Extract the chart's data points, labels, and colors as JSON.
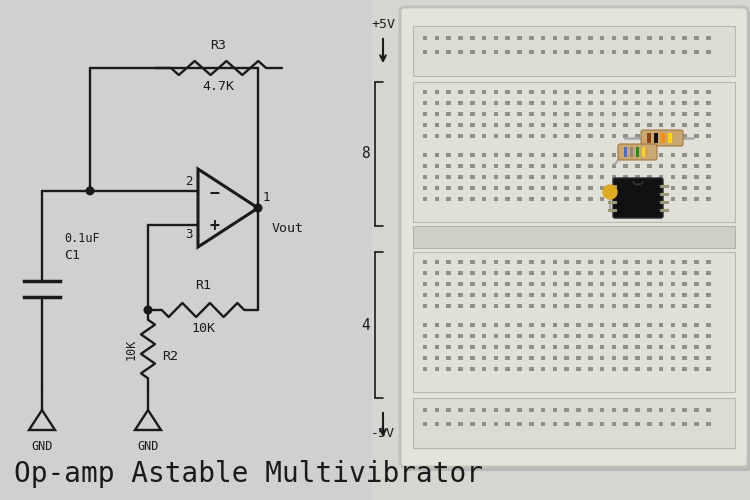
{
  "title": "Op-amp Astable Multivibrator",
  "bg_color": "#d0d0d0",
  "line_color": "#1a1a1a",
  "text_color": "#1a1a1a",
  "title_fontsize": 20,
  "bb_body_color": "#e8e8e2",
  "bb_rail_color": "#ddddd6",
  "bb_divider_color": "#c8c8c2",
  "bb_hole_color": "#aaaaaa",
  "bb_edge_color": "#b8b8b0",
  "right_bg": "#d8d8d5",
  "chip_color": "#111111",
  "components": {
    "R1_label": "R1",
    "R1_val": "10K",
    "R2_label": "R2",
    "R2_val": "10K",
    "R3_label": "R3",
    "R3_val": "4.7K",
    "C1_label": "C1",
    "C1_val": "0.1uF"
  },
  "annotations": {
    "plus5v": "+5V",
    "minus5v": "-5V",
    "pin8": "8",
    "pin4": "4",
    "vout": "Vout",
    "gnd": "GND",
    "pin1": "1",
    "pin2": "2",
    "pin3": "3"
  }
}
